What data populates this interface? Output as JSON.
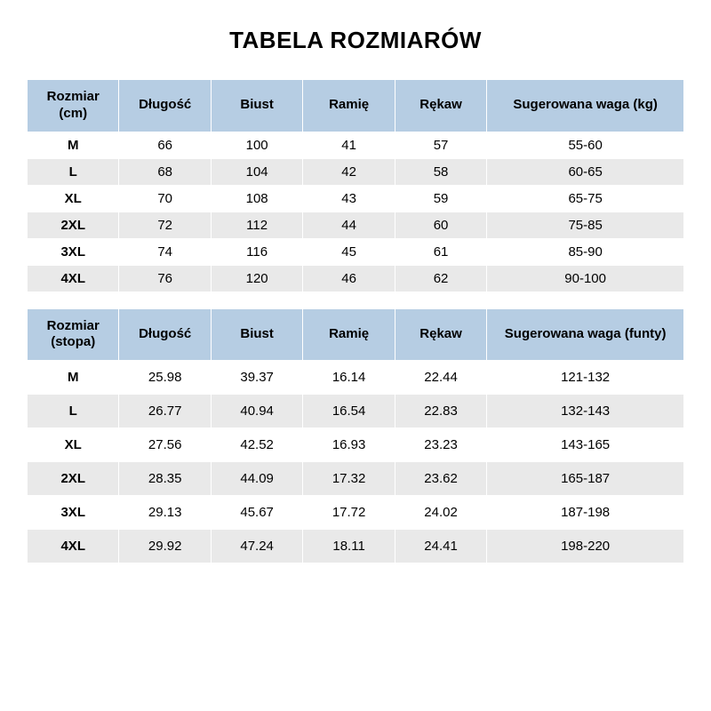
{
  "title": "TABELA ROZMIARÓW",
  "table_cm": {
    "type": "table",
    "header_bg": "#b6cde3",
    "row_alt_bg": "#e9e9e9",
    "row_bg": "#ffffff",
    "border_color": "#ffffff",
    "font_family": "Arial",
    "header_fontsize": 15,
    "body_fontsize": 15,
    "columns": [
      "Rozmiar (cm)",
      "Długość",
      "Biust",
      "Ramię",
      "Rękaw",
      "Sugerowana waga (kg)"
    ],
    "col_widths_pct": [
      14,
      14,
      14,
      14,
      14,
      30
    ],
    "rows": [
      [
        "M",
        "66",
        "100",
        "41",
        "57",
        "55-60"
      ],
      [
        "L",
        "68",
        "104",
        "42",
        "58",
        "60-65"
      ],
      [
        "XL",
        "70",
        "108",
        "43",
        "59",
        "65-75"
      ],
      [
        "2XL",
        "72",
        "112",
        "44",
        "60",
        "75-85"
      ],
      [
        "3XL",
        "74",
        "116",
        "45",
        "61",
        "85-90"
      ],
      [
        "4XL",
        "76",
        "120",
        "46",
        "62",
        "90-100"
      ]
    ]
  },
  "table_ft": {
    "type": "table",
    "header_bg": "#b6cde3",
    "row_alt_bg": "#e9e9e9",
    "row_bg": "#ffffff",
    "border_color": "#ffffff",
    "font_family": "Arial",
    "header_fontsize": 15,
    "body_fontsize": 15,
    "columns": [
      "Rozmiar (stopa)",
      "Długość",
      "Biust",
      "Ramię",
      "Rękaw",
      "Sugerowana waga (funty)"
    ],
    "col_widths_pct": [
      14,
      14,
      14,
      14,
      14,
      30
    ],
    "rows": [
      [
        "M",
        "25.98",
        "39.37",
        "16.14",
        "22.44",
        "121-132"
      ],
      [
        "L",
        "26.77",
        "40.94",
        "16.54",
        "22.83",
        "132-143"
      ],
      [
        "XL",
        "27.56",
        "42.52",
        "16.93",
        "23.23",
        "143-165"
      ],
      [
        "2XL",
        "28.35",
        "44.09",
        "17.32",
        "23.62",
        "165-187"
      ],
      [
        "3XL",
        "29.13",
        "45.67",
        "17.72",
        "24.02",
        "187-198"
      ],
      [
        "4XL",
        "29.92",
        "47.24",
        "18.11",
        "24.41",
        "198-220"
      ]
    ]
  }
}
